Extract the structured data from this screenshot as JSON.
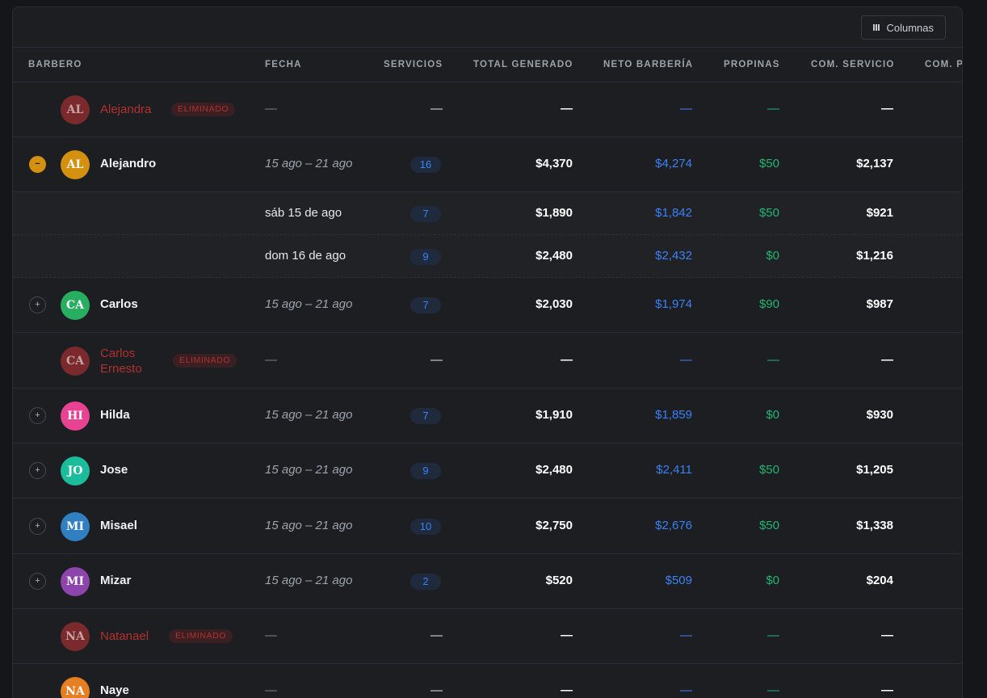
{
  "toolbar": {
    "columns_label": "Columnas",
    "columns_icon": "columns-icon"
  },
  "headers": {
    "barbero": "BARBERO",
    "fecha": "FECHA",
    "servicios": "SERVICIOS",
    "total": "TOTAL GENERADO",
    "neto": "NETO BARBERÍA",
    "propinas": "PROPINAS",
    "com_servicio": "COM. SERVICIO",
    "com_p": "COM. P"
  },
  "deleted_label": "ELIMINADO",
  "rows": [
    {
      "initials": "AL",
      "name": "Alejandra",
      "deleted": true,
      "date": "—",
      "services": "—",
      "total": "—",
      "neto": "—",
      "tips": "—",
      "commission": "—"
    },
    {
      "initials": "AL",
      "name": "Alejandro",
      "deleted": false,
      "expanded": true,
      "date": "15 ago – 21 ago",
      "services": "16",
      "total": "$4,370",
      "neto": "$4,274",
      "tips": "$50",
      "commission": "$2,137"
    },
    {
      "sub": true,
      "date": "sáb 15 de ago",
      "services": "7",
      "total": "$1,890",
      "neto": "$1,842",
      "tips": "$50",
      "commission": "$921"
    },
    {
      "sub": true,
      "date": "dom 16 de ago",
      "services": "9",
      "total": "$2,480",
      "neto": "$2,432",
      "tips": "$0",
      "commission": "$1,216"
    },
    {
      "initials": "CA",
      "name": "Carlos",
      "deleted": false,
      "date": "15 ago – 21 ago",
      "services": "7",
      "total": "$2,030",
      "neto": "$1,974",
      "tips": "$90",
      "commission": "$987"
    },
    {
      "initials": "CA",
      "name": "Carlos",
      "name2": "Ernesto",
      "deleted": true,
      "date": "—",
      "services": "—",
      "total": "—",
      "neto": "—",
      "tips": "—",
      "commission": "—"
    },
    {
      "initials": "HI",
      "name": "Hilda",
      "deleted": false,
      "date": "15 ago – 21 ago",
      "services": "7",
      "total": "$1,910",
      "neto": "$1,859",
      "tips": "$0",
      "commission": "$930"
    },
    {
      "initials": "JO",
      "name": "Jose",
      "deleted": false,
      "date": "15 ago – 21 ago",
      "services": "9",
      "total": "$2,480",
      "neto": "$2,411",
      "tips": "$50",
      "commission": "$1,205"
    },
    {
      "initials": "MI",
      "name": "Misael",
      "deleted": false,
      "date": "15 ago – 21 ago",
      "services": "10",
      "total": "$2,750",
      "neto": "$2,676",
      "tips": "$50",
      "commission": "$1,338"
    },
    {
      "initials": "MI",
      "name": "Mizar",
      "deleted": false,
      "date": "15 ago – 21 ago",
      "services": "2",
      "total": "$520",
      "neto": "$509",
      "tips": "$0",
      "commission": "$204"
    },
    {
      "initials": "NA",
      "name": "Natanael",
      "deleted": true,
      "date": "—",
      "services": "—",
      "total": "—",
      "neto": "—",
      "tips": "—",
      "commission": "—"
    },
    {
      "initials": "NA",
      "name": "Naye",
      "deleted": false,
      "date": "—",
      "services": "—",
      "total": "—",
      "neto": "—",
      "tips": "—",
      "commission": "—"
    }
  ],
  "colors": {
    "deleted": "#7a2a2c",
    "alejandro": "#d4900f",
    "carlos": "#27ae60",
    "hilda": "#e84393",
    "jose": "#1abc9c",
    "misael": "#2f7fc1",
    "mizar": "#8e44ad",
    "naye": "#e67e22"
  }
}
